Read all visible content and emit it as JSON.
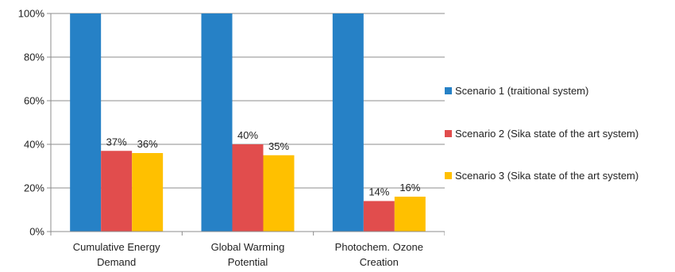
{
  "chart_data": {
    "type": "bar",
    "title": "",
    "xlabel": "",
    "ylabel": "",
    "ylim": [
      0,
      100
    ],
    "yticks": [
      "0%",
      "20%",
      "40%",
      "60%",
      "80%",
      "100%"
    ],
    "grid": true,
    "legend_position": "right",
    "categories": [
      [
        "Cumulative Energy",
        "Demand"
      ],
      [
        "Global Warming",
        "Potential"
      ],
      [
        "Photochem. Ozone",
        "Creation"
      ]
    ],
    "series": [
      {
        "name": "Scenario 1 (traitional system)",
        "color": "#2681C6",
        "values": [
          100,
          100,
          100
        ],
        "labels": [
          "",
          "",
          ""
        ]
      },
      {
        "name": "Scenario 2 (Sika state of the art system)",
        "color": "#E14D4D",
        "values": [
          37,
          40,
          14
        ],
        "labels": [
          "37%",
          "40%",
          "14%"
        ]
      },
      {
        "name": "Scenario 3 (Sika state of the art system)",
        "color": "#FFC000",
        "values": [
          36,
          35,
          16
        ],
        "labels": [
          "36%",
          "35%",
          "16%"
        ]
      }
    ]
  }
}
